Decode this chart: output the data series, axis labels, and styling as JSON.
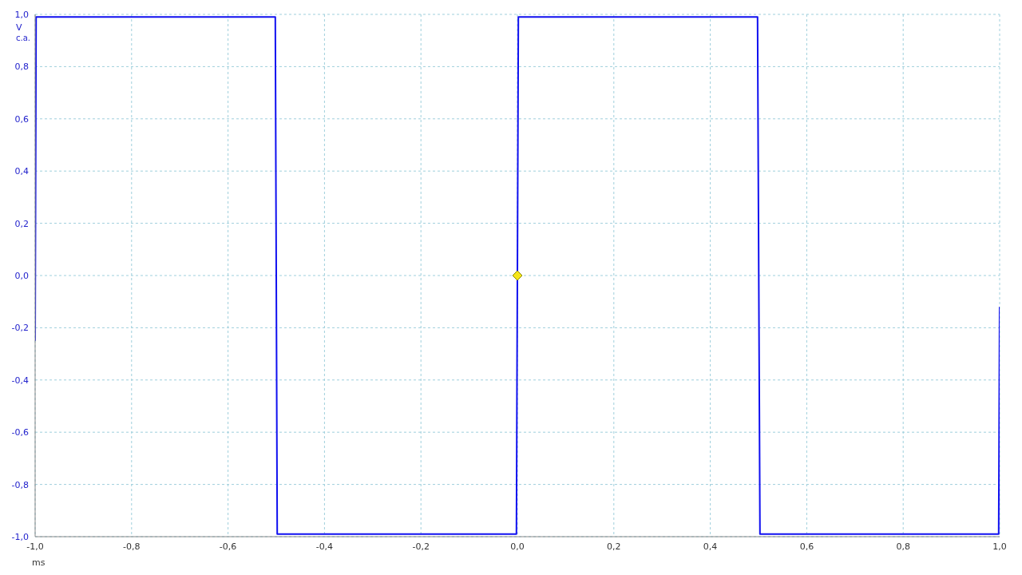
{
  "chart_data": {
    "type": "line",
    "xlabel": "ms",
    "ylabel": "V",
    "annotations": [
      "c.a."
    ],
    "x": [
      -1.0,
      -0.998,
      -0.502,
      -0.498,
      -0.002,
      0.002,
      0.498,
      0.503,
      0.998,
      1.0
    ],
    "series": [
      {
        "color": "#1010f0",
        "values": [
          -0.25,
          0.99,
          0.99,
          -0.99,
          -0.99,
          0.99,
          0.99,
          -0.99,
          -0.99,
          -0.12
        ]
      }
    ],
    "xlim": [
      -1.0,
      1.0
    ],
    "xticks": [
      {
        "value": -1.0,
        "label": "-1,0"
      },
      {
        "value": -0.8,
        "label": "-0,8"
      },
      {
        "value": -0.6,
        "label": "-0,6"
      },
      {
        "value": -0.4,
        "label": "-0,4"
      },
      {
        "value": -0.2,
        "label": "-0,2"
      },
      {
        "value": 0.0,
        "label": "0,0"
      },
      {
        "value": 0.2,
        "label": "0,2"
      },
      {
        "value": 0.4,
        "label": "0,4"
      },
      {
        "value": 0.6,
        "label": "0,6"
      },
      {
        "value": 0.8,
        "label": "0,8"
      },
      {
        "value": 1.0,
        "label": "1,0"
      }
    ],
    "ylim": [
      -1.0,
      1.0
    ],
    "yticks": [
      {
        "value": -1.0,
        "label": "-1,0"
      },
      {
        "value": -0.8,
        "label": "-0,8"
      },
      {
        "value": -0.6,
        "label": "-0,6"
      },
      {
        "value": -0.4,
        "label": "-0,4"
      },
      {
        "value": -0.2,
        "label": "-0,2"
      },
      {
        "value": 0.0,
        "label": "0,0"
      },
      {
        "value": 0.2,
        "label": "0,2"
      },
      {
        "value": 0.4,
        "label": "0,4"
      },
      {
        "value": 0.6,
        "label": "0,6"
      },
      {
        "value": 0.8,
        "label": "0,8"
      },
      {
        "value": 1.0,
        "label": "1,0"
      }
    ],
    "grid": true,
    "marker": "none",
    "line_style": "solid"
  }
}
